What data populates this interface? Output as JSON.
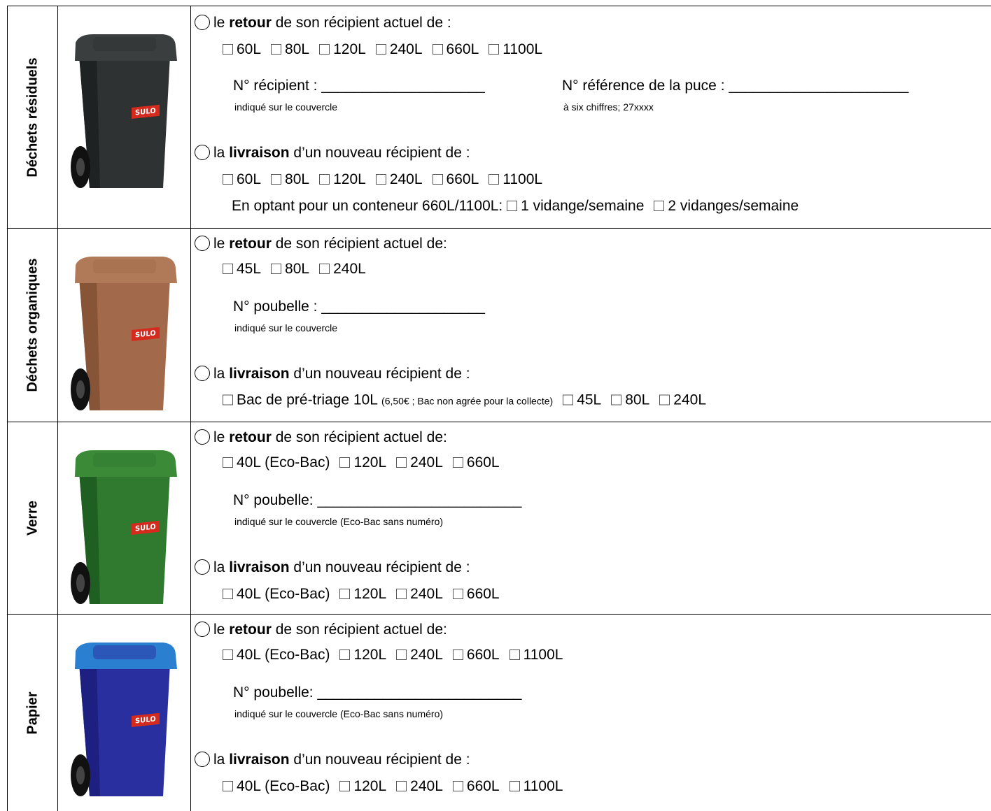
{
  "rows": [
    {
      "label": "Déchets résiduels",
      "retour": {
        "before": "le ",
        "bold": "retour",
        "after": " de son récipient actuel de :"
      },
      "retour_options": [
        "60L",
        "80L",
        "120L",
        "240L",
        "660L",
        "1100L"
      ],
      "fields": [
        {
          "label": "N° récipient : ",
          "blank": "____________________",
          "hint": "indiqué sur le couvercle"
        },
        {
          "label": "N° référence de la puce : ",
          "blank": "______________________",
          "hint": "à six chiffres; 27xxxx"
        }
      ],
      "livraison": {
        "before": "la ",
        "bold": "livraison",
        "after": " d’un nouveau récipient de :"
      },
      "livraison_options": [
        "60L",
        "80L",
        "120L",
        "240L",
        "660L",
        "1100L"
      ],
      "extra": {
        "text": "En optant pour un conteneur 660L/1100L:",
        "options": [
          "1 vidange/semaine",
          "2 vidanges/semaine"
        ]
      }
    },
    {
      "label": "Déchets organiques",
      "retour": {
        "before": "le ",
        "bold": "retour",
        "after": " de son récipient actuel de:"
      },
      "retour_options": [
        "45L",
        "80L",
        "240L"
      ],
      "fields": [
        {
          "label": "N° poubelle : ",
          "blank": "____________________",
          "hint": "indiqué sur le couvercle"
        }
      ],
      "livraison": {
        "before": "la ",
        "bold": "livraison",
        "after": " d’un nouveau récipient de :"
      },
      "livraison_options": [
        {
          "text": "Bac de pré-triage 10L",
          "note": "(6,50€ ; Bac non agrée pour la collecte)"
        },
        "45L",
        "80L",
        "240L"
      ]
    },
    {
      "label": "Verre",
      "retour": {
        "before": "le ",
        "bold": "retour",
        "after": " de son récipient actuel de:"
      },
      "retour_options": [
        "40L (Eco-Bac)",
        "120L",
        "240L",
        "660L"
      ],
      "fields": [
        {
          "label": "N° poubelle: ",
          "blank": "_________________________",
          "hint": "indiqué sur le couvercle (Eco-Bac sans numéro)"
        }
      ],
      "livraison": {
        "before": "la ",
        "bold": "livraison",
        "after": " d’un nouveau récipient de :"
      },
      "livraison_options": [
        "40L (Eco-Bac)",
        "120L",
        "240L",
        "660L"
      ]
    },
    {
      "label": "Papier",
      "retour": {
        "before": "le ",
        "bold": "retour",
        "after": " de son récipient actuel de:"
      },
      "retour_options": [
        "40L (Eco-Bac)",
        "120L",
        "240L",
        "660L",
        "1100L"
      ],
      "fields": [
        {
          "label": "N° poubelle: ",
          "blank": "_________________________",
          "hint": "indiqué sur le couvercle (Eco-Bac sans numéro)"
        }
      ],
      "livraison": {
        "before": "la ",
        "bold": "livraison",
        "after": " d’un nouveau récipient de :"
      },
      "livraison_options": [
        "40L (Eco-Bac)",
        "120L",
        "240L",
        "660L",
        "1100L"
      ]
    }
  ]
}
